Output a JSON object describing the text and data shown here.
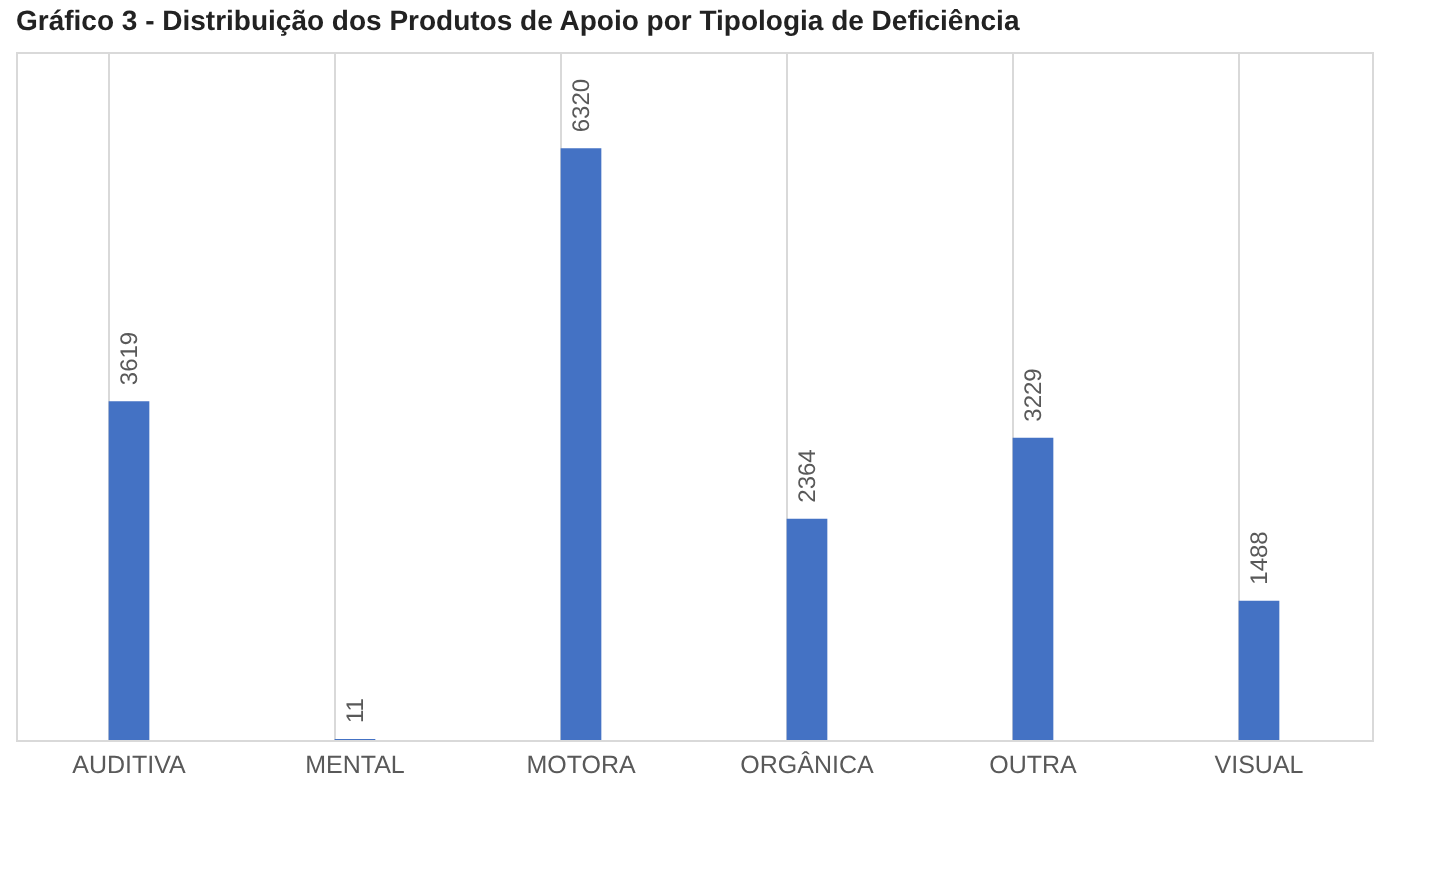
{
  "chart_data": {
    "type": "bar",
    "title": "Gráfico 3 - Distribuição dos Produtos de Apoio por Tipologia de Deficiência",
    "categories": [
      "AUDITIVA",
      "MENTAL",
      "MOTORA",
      "ORGÂNICA",
      "OUTRA",
      "VISUAL"
    ],
    "values": [
      3619,
      11,
      6320,
      2364,
      3229,
      1488
    ],
    "color": "#4472c4",
    "data_labels": true,
    "grid": "x"
  }
}
